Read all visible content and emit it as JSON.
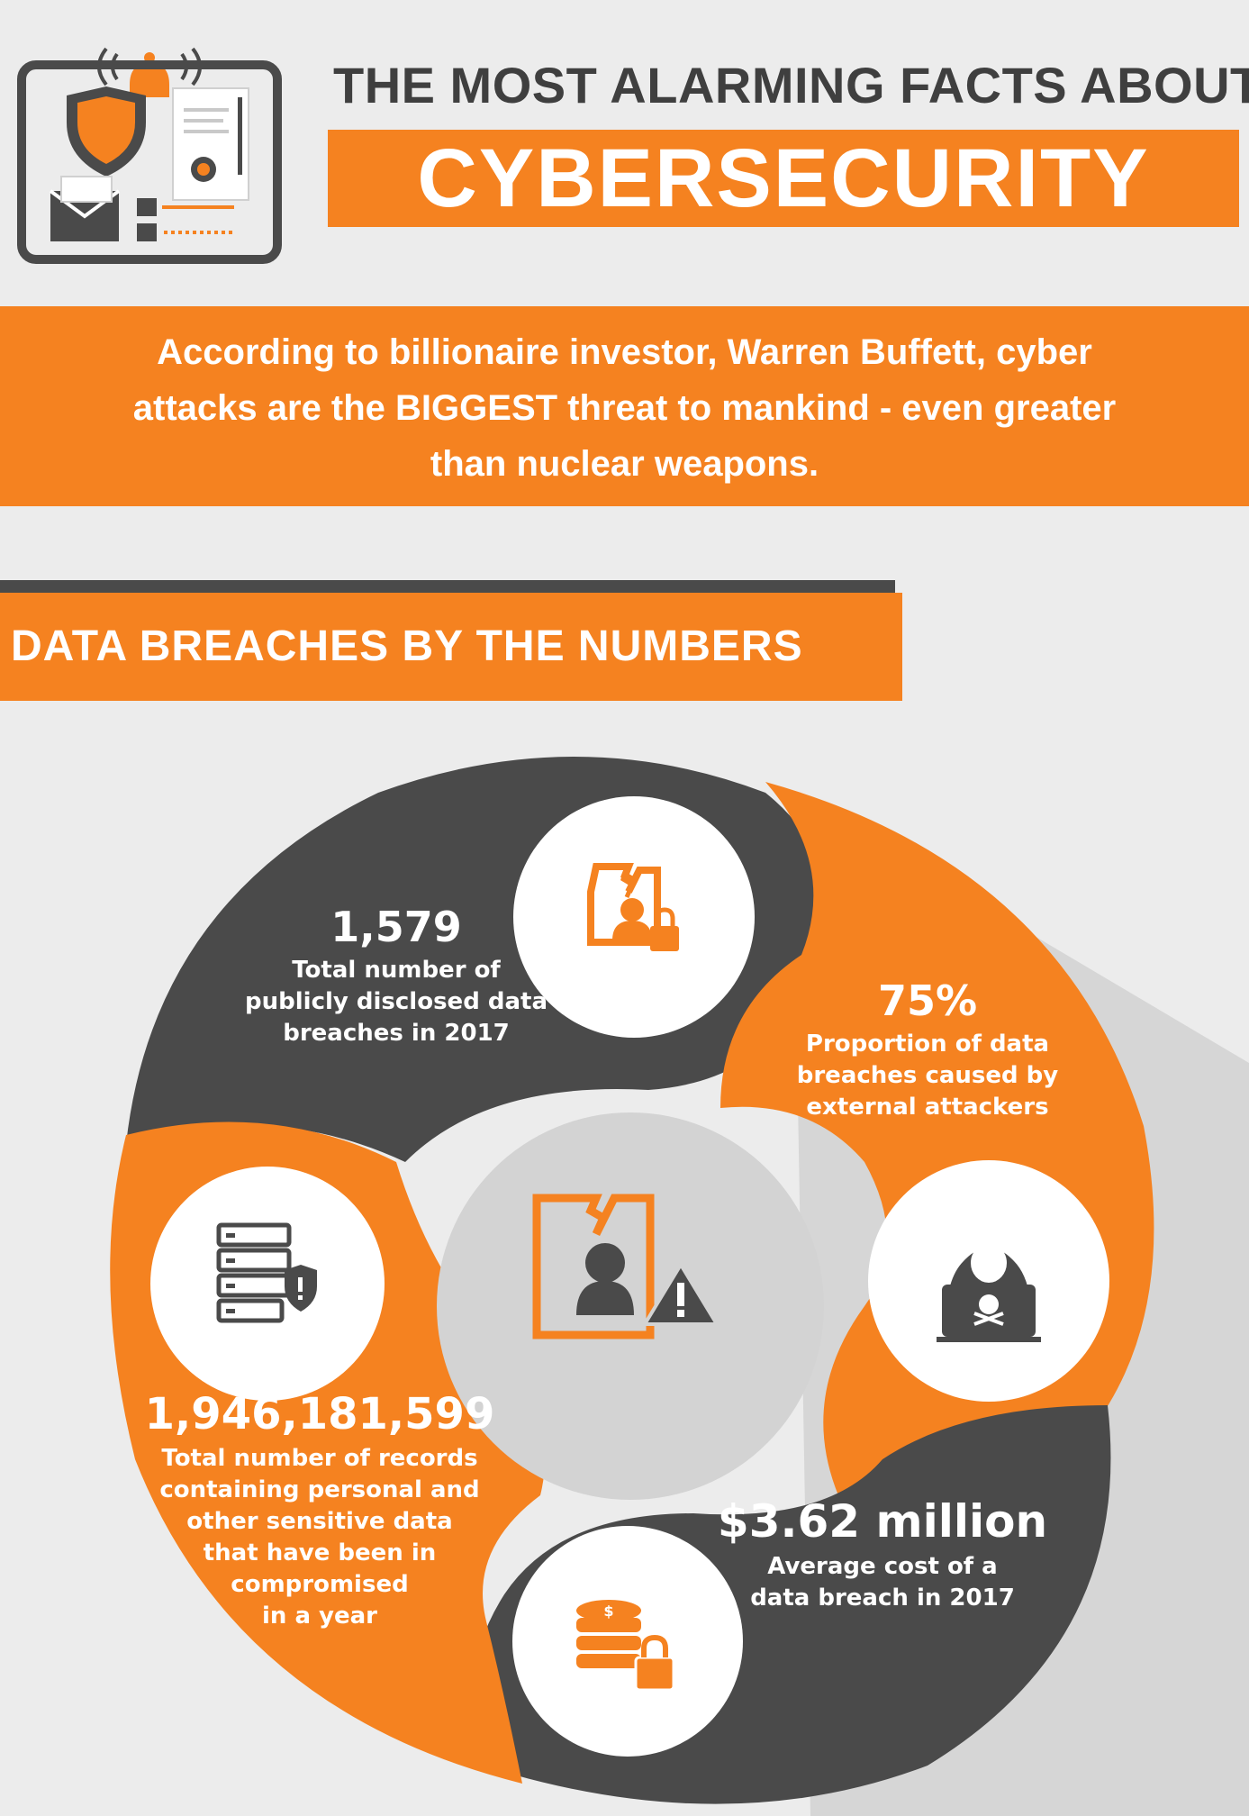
{
  "header": {
    "title_top": "THE MOST ALARMING FACTS ABOUT",
    "title_main": "CYBERSECURITY"
  },
  "quote": {
    "lines": [
      "According to billionaire investor, Warren Buffett, cyber",
      "attacks are the BIGGEST threat to mankind - even greater",
      "than nuclear weapons."
    ]
  },
  "section": {
    "title": "DATA BREACHES BY THE NUMBERS"
  },
  "stats": [
    {
      "value": "1,579",
      "desc": [
        "Total number of",
        "publicly disclosed data",
        "breaches in 2017"
      ],
      "icon": "document-user-lock-icon"
    },
    {
      "value": "75%",
      "desc": [
        "Proportion of data",
        "breaches caused by",
        "external attackers"
      ],
      "icon": "hooded-hacker-icon"
    },
    {
      "value": "1,946,181,599",
      "desc": [
        "Total number of records",
        "containing personal and",
        "other sensitive data",
        "that have been in",
        "compromised",
        "in a year"
      ],
      "icon": "server-shield-icon"
    },
    {
      "value": "$3.62 million",
      "desc": [
        "Average cost of a",
        "data breach in 2017"
      ],
      "icon": "coins-lock-icon"
    }
  ],
  "colors": {
    "orange": "#f58220",
    "dark": "#4a4a4a",
    "light_gray": "#d3d3d3",
    "background": "#ececec",
    "white": "#ffffff"
  }
}
